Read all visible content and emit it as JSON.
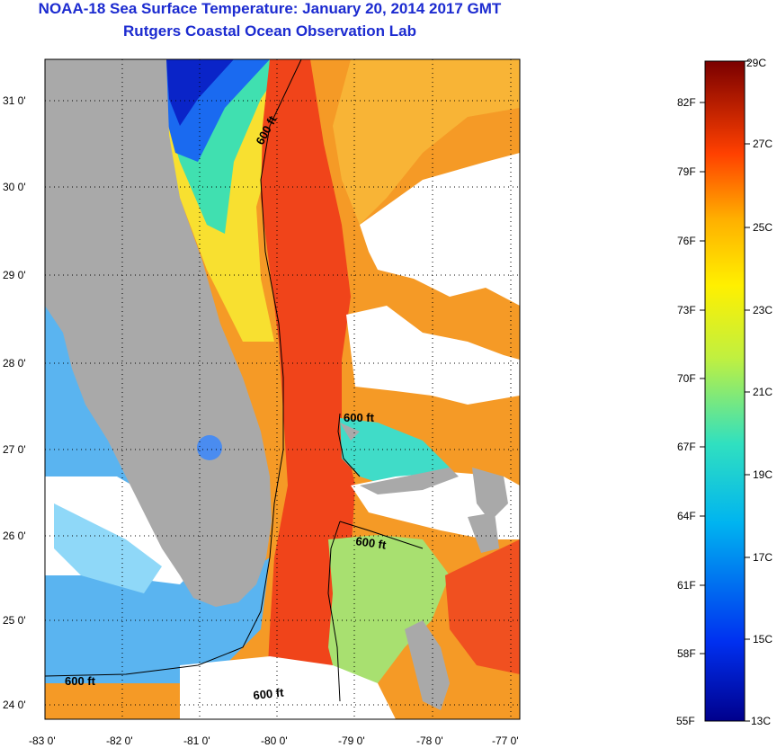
{
  "header": {
    "title": "NOAA-18 Sea Surface Temperature:  January 20, 2014 2017 GMT",
    "subtitle": "Rutgers Coastal Ocean Observation Lab"
  },
  "map": {
    "lat_ticks": [
      "31 0'",
      "30 0'",
      "29 0'",
      "28 0'",
      "27 0'",
      "26 0'",
      "25 0'",
      "24 0'"
    ],
    "lon_ticks": [
      "-83 0'",
      "-82 0'",
      "-81 0'",
      "-80 0'",
      "-79 0'",
      "-78 0'",
      "-77 0'"
    ],
    "contour_labels": [
      "600 ft",
      "600 ft",
      "600 ft",
      "600 ft",
      "600 ft"
    ],
    "colors": {
      "land": "#a9a9a9",
      "cloud": "#ffffff",
      "gulf_stream": "#f04010",
      "warm": "#f8a020",
      "cool": "#40d8d0",
      "cold": "#1020c0"
    }
  },
  "colorbar": {
    "fahrenheit": [
      "82F",
      "79F",
      "76F",
      "73F",
      "70F",
      "67F",
      "64F",
      "61F",
      "58F",
      "55F"
    ],
    "celsius": [
      "29C",
      "27C",
      "25C",
      "23C",
      "21C",
      "19C",
      "17C",
      "15C",
      "13C"
    ]
  }
}
